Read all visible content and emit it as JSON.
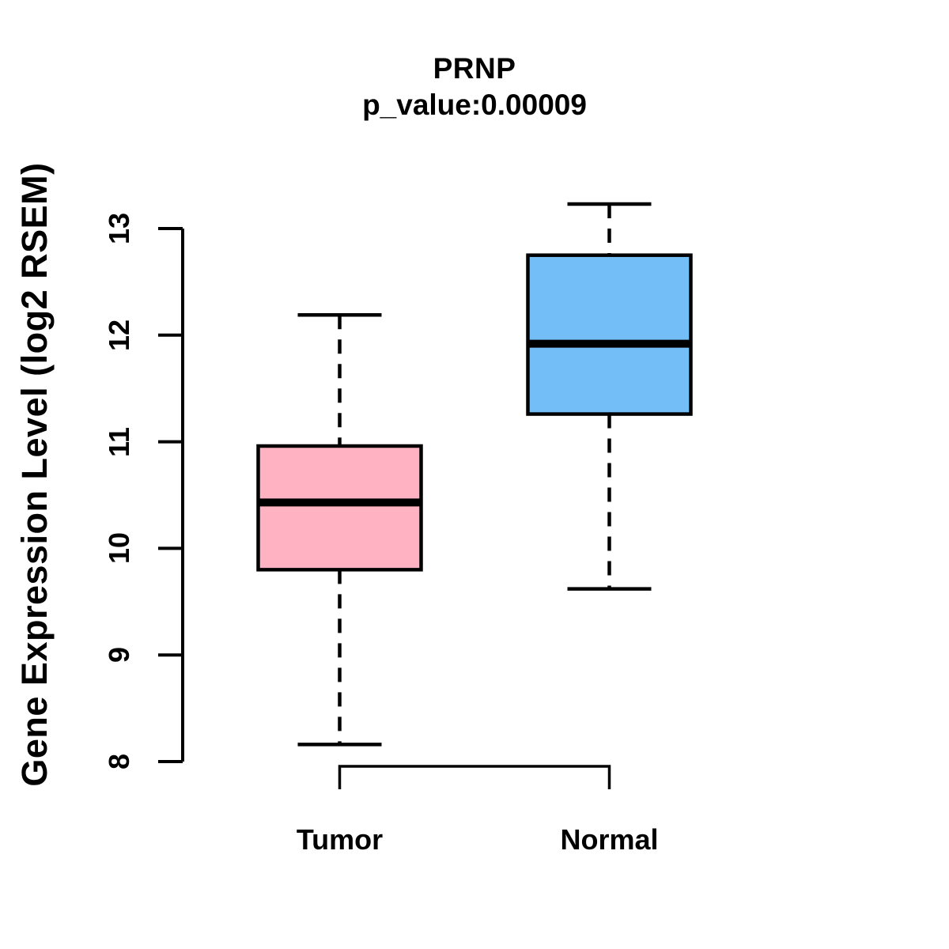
{
  "header": {
    "title": "PRNP",
    "subtitle": "p_value:0.00009"
  },
  "chart_data": {
    "type": "boxplot",
    "title": "PRNP",
    "subtitle": "p_value:0.00009",
    "xlabel": "",
    "ylabel": "Gene Expression Level (log2 RSEM)",
    "categories": [
      "Tumor",
      "Normal"
    ],
    "series": [
      {
        "name": "Tumor",
        "lower_whisker": 8.16,
        "q1": 9.8,
        "median": 10.43,
        "q3": 10.96,
        "upper_whisker": 12.19,
        "fill": "#FFB3C2"
      },
      {
        "name": "Normal",
        "lower_whisker": 9.62,
        "q1": 11.26,
        "median": 11.92,
        "q3": 12.75,
        "upper_whisker": 13.23,
        "fill": "#74BEF8"
      }
    ],
    "ylim": [
      8,
      13
    ],
    "yticks": [
      8,
      9,
      10,
      11,
      12,
      13
    ],
    "ytick_labels": [
      "8",
      "9",
      "10",
      "11",
      "12",
      "13"
    ],
    "grid": false,
    "legend": null,
    "colors": {
      "tumor_fill": "#FFB3C2",
      "normal_fill": "#74BEF8",
      "stroke": "#000000",
      "background": "#FFFFFF",
      "text": "#000000"
    }
  }
}
